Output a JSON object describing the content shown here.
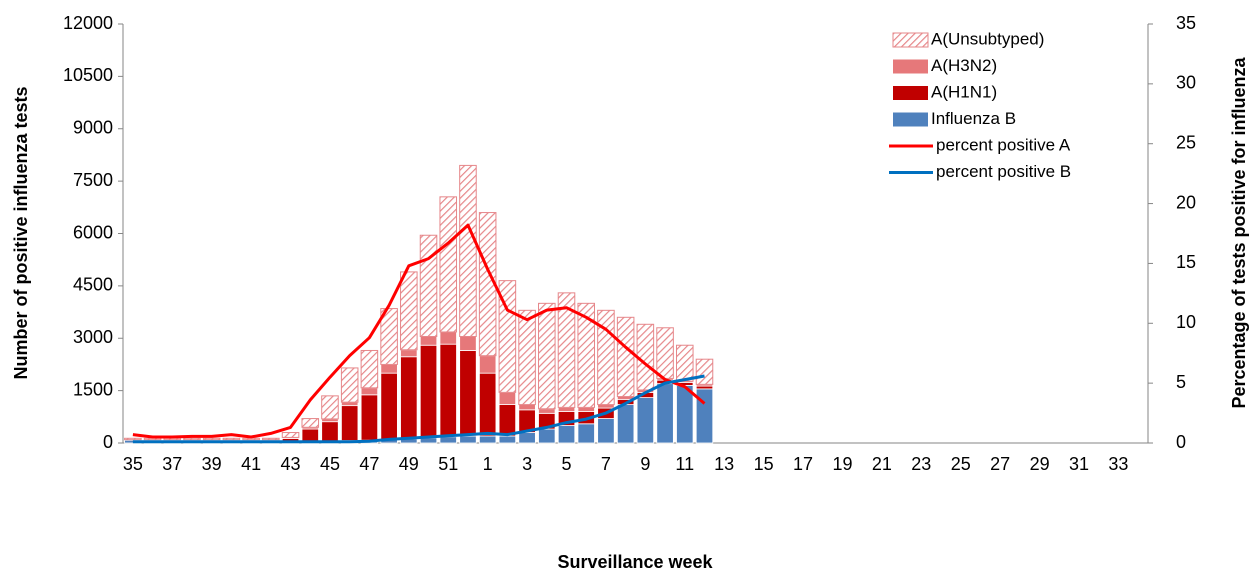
{
  "chart_data": {
    "type": "bar",
    "stacked": true,
    "x_label": "Surveillance  week",
    "y_label": "Number of positive influenza tests",
    "y2_label": "Percentage of tests positive for influenza",
    "categories": [
      "35",
      null,
      "37",
      null,
      "39",
      null,
      "41",
      null,
      "43",
      null,
      "45",
      null,
      "47",
      null,
      "49",
      null,
      "51",
      null,
      "1",
      null,
      "3",
      null,
      "5",
      null,
      "7",
      null,
      "9",
      null,
      "11",
      null,
      "13",
      null,
      "15",
      null,
      "17",
      null,
      "19",
      null,
      "21",
      null,
      "23",
      null,
      "25",
      null,
      "27",
      null,
      "29",
      null,
      "31",
      null,
      "33",
      null
    ],
    "ylim": [
      0,
      12000
    ],
    "yticks": [
      0,
      1500,
      3000,
      4500,
      6000,
      7500,
      9000,
      10500,
      12000
    ],
    "y2lim": [
      0,
      35
    ],
    "y2ticks": [
      0,
      5,
      10,
      15,
      20,
      25,
      30,
      35
    ],
    "legend": "upper right",
    "series": [
      {
        "name": "Influenza B",
        "type": "bar",
        "color": "#4f81bd",
        "values": [
          80,
          80,
          80,
          80,
          80,
          80,
          80,
          80,
          50,
          50,
          60,
          70,
          80,
          100,
          120,
          150,
          180,
          200,
          200,
          200,
          300,
          400,
          500,
          550,
          700,
          1100,
          1300,
          1700,
          1650,
          1550,
          null,
          null,
          null,
          null,
          null,
          null,
          null,
          null,
          null,
          null,
          null,
          null,
          null,
          null,
          null,
          null,
          null,
          null,
          null,
          null,
          null,
          null
        ]
      },
      {
        "name": "A(H1N1)",
        "type": "bar",
        "color": "#c00000",
        "values": [
          10,
          10,
          10,
          10,
          10,
          10,
          10,
          10,
          80,
          350,
          550,
          1000,
          1300,
          1900,
          2350,
          2650,
          2650,
          2450,
          1800,
          900,
          650,
          450,
          400,
          350,
          300,
          150,
          150,
          100,
          80,
          80,
          null,
          null,
          null,
          null,
          null,
          null,
          null,
          null,
          null,
          null,
          null,
          null,
          null,
          null,
          null,
          null,
          null,
          null,
          null,
          null,
          null,
          null
        ]
      },
      {
        "name": "A(H3N2)",
        "type": "bar",
        "color": "#e6787a",
        "values": [
          5,
          5,
          5,
          5,
          5,
          5,
          5,
          5,
          30,
          50,
          80,
          100,
          200,
          250,
          200,
          250,
          350,
          400,
          500,
          350,
          150,
          130,
          120,
          120,
          100,
          80,
          70,
          50,
          40,
          50,
          null,
          null,
          null,
          null,
          null,
          null,
          null,
          null,
          null,
          null,
          null,
          null,
          null,
          null,
          null,
          null,
          null,
          null,
          null,
          null,
          null,
          null
        ]
      },
      {
        "name": "A(Unsubtyped)",
        "type": "bar",
        "color": "#e6878a",
        "pattern": "hatch",
        "values": [
          40,
          40,
          40,
          40,
          40,
          40,
          40,
          40,
          140,
          250,
          660,
          980,
          1070,
          1600,
          2230,
          2900,
          3870,
          4900,
          4100,
          3200,
          2700,
          3020,
          3280,
          2980,
          2700,
          2270,
          1880,
          1450,
          1030,
          720,
          null,
          null,
          null,
          null,
          null,
          null,
          null,
          null,
          null,
          null,
          null,
          null,
          null,
          null,
          null,
          null,
          null,
          null,
          null,
          null,
          null,
          null
        ]
      },
      {
        "name": "percent positive A",
        "type": "line",
        "axis": "y2",
        "color": "#ff0000",
        "values": [
          0.7,
          0.5,
          0.5,
          0.55,
          0.55,
          0.7,
          0.5,
          0.8,
          1.3,
          3.6,
          5.5,
          7.3,
          8.8,
          11.5,
          14.8,
          15.4,
          16.7,
          18.2,
          14.5,
          11.1,
          10.3,
          11.1,
          11.3,
          10.5,
          9.5,
          8,
          6.6,
          5.3,
          4.7,
          3.3,
          null,
          null,
          null,
          null,
          null,
          null,
          null,
          null,
          null,
          null,
          null,
          null,
          null,
          null,
          null,
          null,
          null,
          null,
          null,
          null,
          null,
          null
        ]
      },
      {
        "name": "percent positive B",
        "type": "line",
        "axis": "y2",
        "color": "#0070c0",
        "values": [
          0.1,
          0.1,
          0.1,
          0.1,
          0.1,
          0.1,
          0.1,
          0.1,
          0.1,
          0.1,
          0.1,
          0.1,
          0.15,
          0.3,
          0.4,
          0.5,
          0.6,
          0.7,
          0.8,
          0.7,
          1.0,
          1.3,
          1.7,
          2.0,
          2.5,
          3.3,
          4.2,
          5.0,
          5.3,
          5.6,
          null,
          null,
          null,
          null,
          null,
          null,
          null,
          null,
          null,
          null,
          null,
          null,
          null,
          null,
          null,
          null,
          null,
          null,
          null,
          null,
          null,
          null
        ]
      }
    ]
  }
}
